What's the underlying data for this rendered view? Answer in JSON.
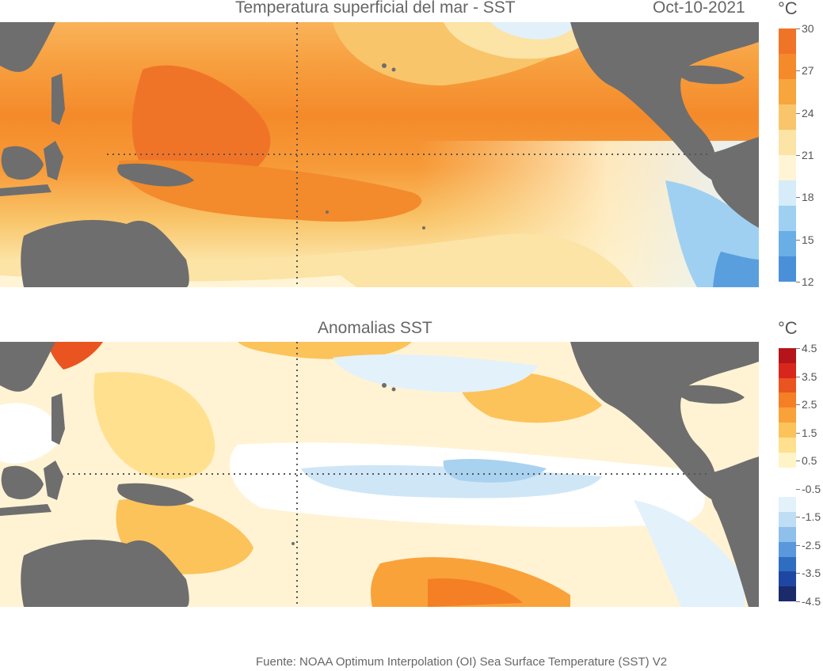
{
  "sst_map": {
    "title": "Temperatura superficial del mar - SST",
    "date": "Oct-10-2021",
    "unit": "°C",
    "colorbar": {
      "colors": [
        "#4a90d9",
        "#6aaee6",
        "#9fd0f2",
        "#d6ecf8",
        "#fff5d6",
        "#fce3a6",
        "#f9c56a",
        "#f7a53d",
        "#f48a2a",
        "#f07428"
      ],
      "labels": [
        "30",
        "27",
        "24",
        "21",
        "18",
        "15",
        "12"
      ]
    }
  },
  "anomaly_map": {
    "title": "Anomalias SST",
    "unit": "°C",
    "colorbar": {
      "colors": [
        "#1b2a6b",
        "#1e47a3",
        "#2f6dc1",
        "#5a98db",
        "#8fbfeb",
        "#bfddf5",
        "#e3f1fb",
        "#ffffff",
        "#ffffff",
        "#fff3c8",
        "#ffe08e",
        "#fcc35a",
        "#f9a23a",
        "#f57f24",
        "#ea5420",
        "#d9261c",
        "#b4141a"
      ],
      "labels": [
        "4.5",
        "3.5",
        "2.5",
        "1.5",
        "0.5",
        "-0.5",
        "-1.5",
        "-2.5",
        "-3.5",
        "-4.5"
      ]
    }
  },
  "source": "Fuente: NOAA Optimum Interpolation (OI) Sea Surface Temperature (SST) V2"
}
